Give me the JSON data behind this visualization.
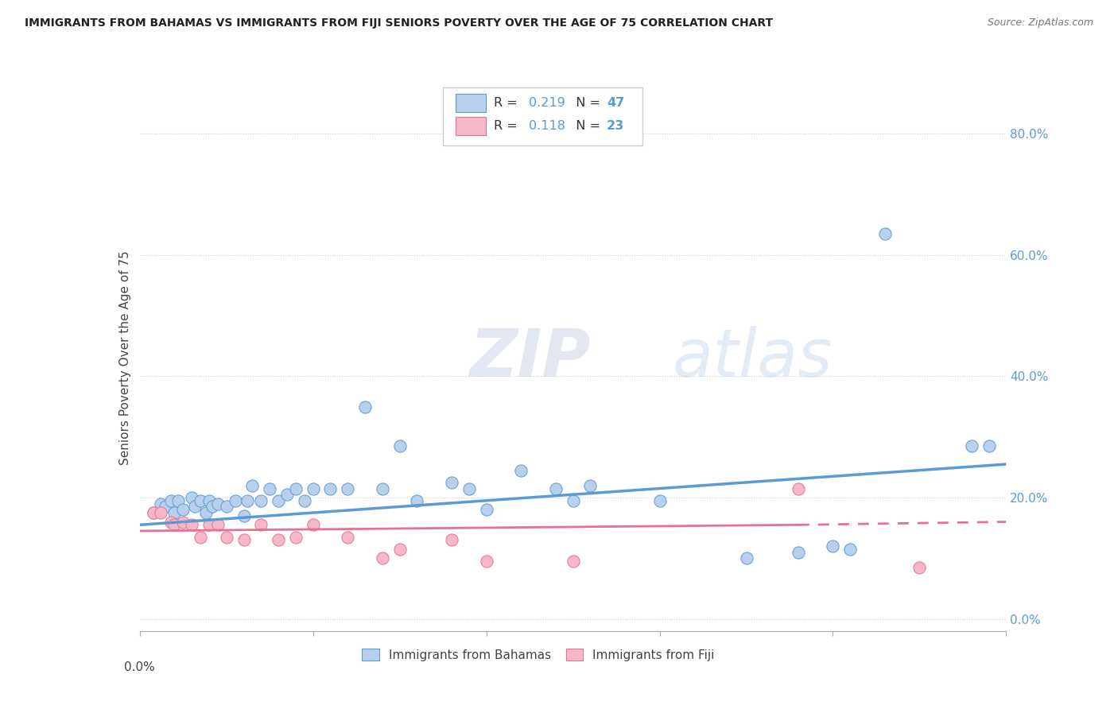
{
  "title": "IMMIGRANTS FROM BAHAMAS VS IMMIGRANTS FROM FIJI SENIORS POVERTY OVER THE AGE OF 75 CORRELATION CHART",
  "source": "Source: ZipAtlas.com",
  "ylabel": "Seniors Poverty Over the Age of 75",
  "right_yticks": [
    "80.0%",
    "60.0%",
    "40.0%",
    "20.0%",
    "0.0%"
  ],
  "right_ytick_vals": [
    0.8,
    0.6,
    0.4,
    0.2,
    0.0
  ],
  "xlim": [
    0.0,
    0.05
  ],
  "ylim": [
    -0.02,
    0.88
  ],
  "watermark": "ZIPatlas",
  "legend": {
    "bahamas_r": "0.219",
    "bahamas_n": "47",
    "fiji_r": "0.118",
    "fiji_n": "23"
  },
  "bahamas_color": "#b8d0eb",
  "fiji_color": "#f5b8c8",
  "trend_bahamas_color": "#5b9bd5",
  "trend_fiji_color": "#e87090",
  "bahamas_scatter_x": [
    0.0008,
    0.0012,
    0.0015,
    0.0018,
    0.002,
    0.0022,
    0.0025,
    0.003,
    0.0032,
    0.0035,
    0.0038,
    0.004,
    0.0042,
    0.0045,
    0.005,
    0.0055,
    0.006,
    0.0062,
    0.0065,
    0.007,
    0.0075,
    0.008,
    0.0085,
    0.009,
    0.0095,
    0.01,
    0.011,
    0.012,
    0.013,
    0.014,
    0.015,
    0.016,
    0.018,
    0.019,
    0.02,
    0.022,
    0.024,
    0.025,
    0.026,
    0.03,
    0.035,
    0.038,
    0.04,
    0.041,
    0.043,
    0.048,
    0.049
  ],
  "bahamas_scatter_y": [
    0.175,
    0.19,
    0.185,
    0.195,
    0.175,
    0.195,
    0.18,
    0.2,
    0.185,
    0.195,
    0.175,
    0.195,
    0.185,
    0.19,
    0.185,
    0.195,
    0.17,
    0.195,
    0.22,
    0.195,
    0.215,
    0.195,
    0.205,
    0.215,
    0.195,
    0.215,
    0.215,
    0.215,
    0.35,
    0.215,
    0.285,
    0.195,
    0.225,
    0.215,
    0.18,
    0.245,
    0.215,
    0.195,
    0.22,
    0.195,
    0.1,
    0.11,
    0.12,
    0.115,
    0.635,
    0.285,
    0.285
  ],
  "fiji_scatter_x": [
    0.0008,
    0.0012,
    0.0018,
    0.002,
    0.0025,
    0.003,
    0.0035,
    0.004,
    0.0045,
    0.005,
    0.006,
    0.007,
    0.008,
    0.009,
    0.01,
    0.012,
    0.014,
    0.015,
    0.018,
    0.02,
    0.025,
    0.038,
    0.045
  ],
  "fiji_scatter_y": [
    0.175,
    0.175,
    0.16,
    0.155,
    0.16,
    0.155,
    0.135,
    0.155,
    0.155,
    0.135,
    0.13,
    0.155,
    0.13,
    0.135,
    0.155,
    0.135,
    0.1,
    0.115,
    0.13,
    0.095,
    0.095,
    0.215,
    0.085
  ],
  "trend_bahamas_x0": 0.0,
  "trend_bahamas_x1": 0.05,
  "trend_bahamas_y0": 0.155,
  "trend_bahamas_y1": 0.255,
  "trend_fiji_solid_x0": 0.0,
  "trend_fiji_solid_x1": 0.038,
  "trend_fiji_y0": 0.145,
  "trend_fiji_y1": 0.155,
  "trend_fiji_dashed_x0": 0.038,
  "trend_fiji_dashed_x1": 0.05,
  "trend_fiji_dashed_y0": 0.155,
  "trend_fiji_dashed_y1": 0.16
}
